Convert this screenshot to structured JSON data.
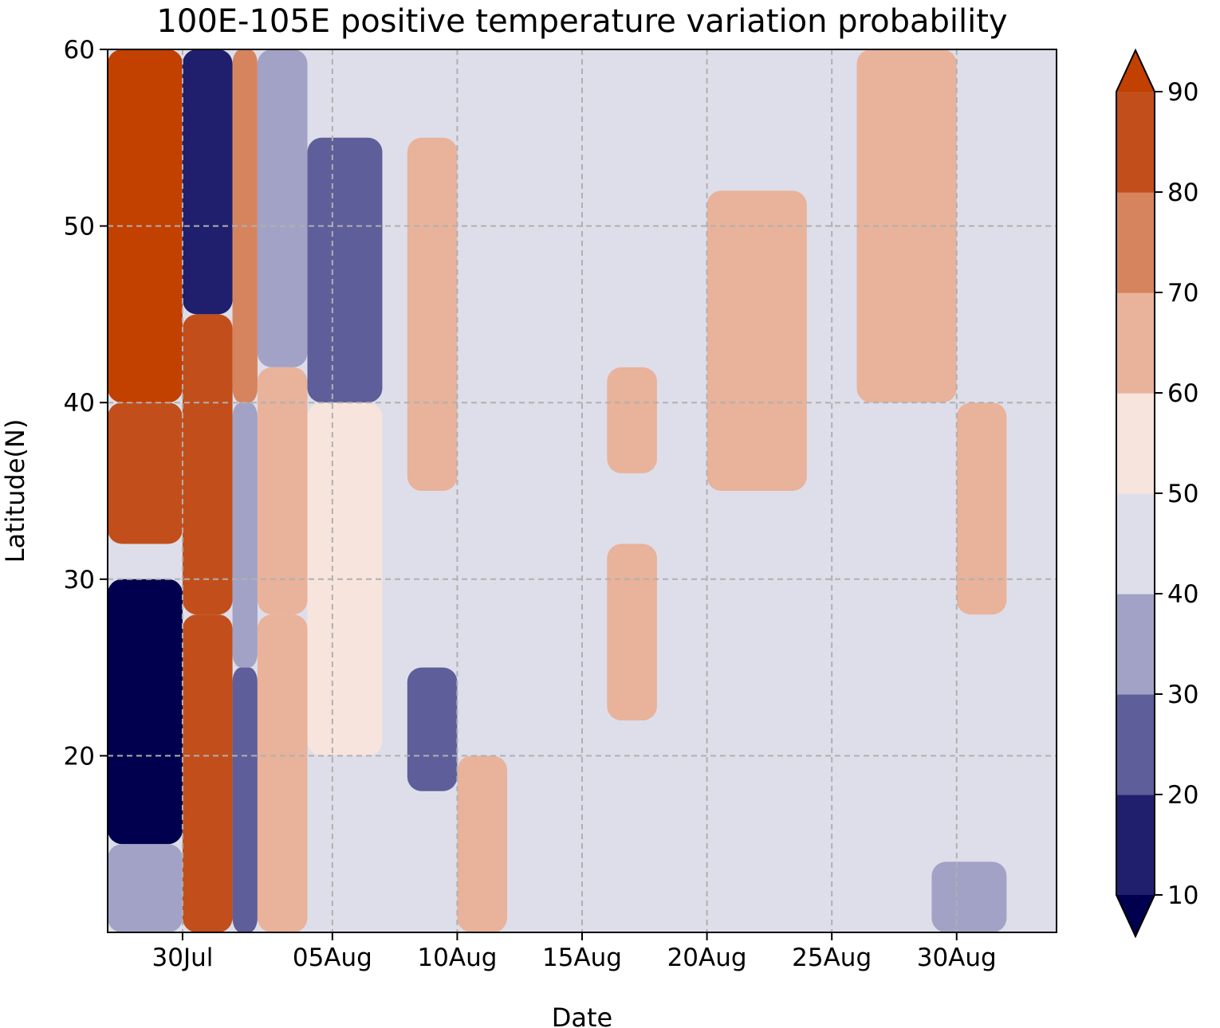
{
  "chart_data": {
    "type": "heatmap",
    "subtype": "filled-contour",
    "title": "100E-105E positive temperature variation probability",
    "xlabel": "Date",
    "ylabel": "Latitude(N)",
    "x_range_days_from_30Jul": [
      -3,
      35
    ],
    "ylim": [
      10,
      60
    ],
    "x_ticks": [
      {
        "label": "30Jul",
        "day": 0
      },
      {
        "label": "05Aug",
        "day": 6
      },
      {
        "label": "10Aug",
        "day": 11
      },
      {
        "label": "15Aug",
        "day": 16
      },
      {
        "label": "20Aug",
        "day": 21
      },
      {
        "label": "25Aug",
        "day": 26
      },
      {
        "label": "30Aug",
        "day": 31
      }
    ],
    "y_ticks": [
      20,
      30,
      40,
      50,
      60
    ],
    "grid": true,
    "colorbar": {
      "location": "right",
      "extend": "both",
      "levels": [
        10,
        20,
        30,
        40,
        50,
        60,
        70,
        80,
        90
      ],
      "tick_labels": [
        "10",
        "20",
        "30",
        "40",
        "50",
        "60",
        "70",
        "80",
        "90"
      ],
      "colors": [
        "#00004e",
        "#1f1f6e",
        "#5e5e9a",
        "#a2a2c6",
        "#dedeea",
        "#f7e4dc",
        "#e8b39a",
        "#d6845e",
        "#c24f1b",
        "#c24000"
      ]
    },
    "cells": [
      {
        "x0": -3,
        "x1": 0,
        "y0": 40,
        "y1": 60,
        "v": 92
      },
      {
        "x0": -3,
        "x1": 0,
        "y0": 32,
        "y1": 40,
        "v": 80
      },
      {
        "x0": -3,
        "x1": 0,
        "y0": 30,
        "y1": 32,
        "v": 45
      },
      {
        "x0": -3,
        "x1": 0,
        "y0": 15,
        "y1": 30,
        "v": 8
      },
      {
        "x0": -3,
        "x1": 0,
        "y0": 10,
        "y1": 15,
        "v": 35
      },
      {
        "x0": 0,
        "x1": 2,
        "y0": 45,
        "y1": 60,
        "v": 12
      },
      {
        "x0": 0,
        "x1": 2,
        "y0": 28,
        "y1": 45,
        "v": 88
      },
      {
        "x0": 0,
        "x1": 2,
        "y0": 10,
        "y1": 28,
        "v": 85
      },
      {
        "x0": 2,
        "x1": 3,
        "y0": 40,
        "y1": 60,
        "v": 75
      },
      {
        "x0": 2,
        "x1": 3,
        "y0": 25,
        "y1": 40,
        "v": 35
      },
      {
        "x0": 2,
        "x1": 3,
        "y0": 10,
        "y1": 25,
        "v": 25
      },
      {
        "x0": 3,
        "x1": 5,
        "y0": 42,
        "y1": 60,
        "v": 30
      },
      {
        "x0": 3,
        "x1": 5,
        "y0": 28,
        "y1": 42,
        "v": 68
      },
      {
        "x0": 3,
        "x1": 5,
        "y0": 10,
        "y1": 28,
        "v": 62
      },
      {
        "x0": 5,
        "x1": 8,
        "y0": 40,
        "y1": 55,
        "v": 25
      },
      {
        "x0": 5,
        "x1": 8,
        "y0": 20,
        "y1": 40,
        "v": 52
      },
      {
        "x0": 5,
        "x1": 8,
        "y0": 10,
        "y1": 20,
        "v": 45
      },
      {
        "x0": 9,
        "x1": 11,
        "y0": 35,
        "y1": 55,
        "v": 66
      },
      {
        "x0": 9,
        "x1": 11,
        "y0": 18,
        "y1": 25,
        "v": 25
      },
      {
        "x0": 11,
        "x1": 13,
        "y0": 10,
        "y1": 20,
        "v": 65
      },
      {
        "x0": 17,
        "x1": 19,
        "y0": 36,
        "y1": 42,
        "v": 66
      },
      {
        "x0": 17,
        "x1": 19,
        "y0": 22,
        "y1": 32,
        "v": 62
      },
      {
        "x0": 21,
        "x1": 25,
        "y0": 35,
        "y1": 52,
        "v": 64
      },
      {
        "x0": 27,
        "x1": 31,
        "y0": 40,
        "y1": 60,
        "v": 62
      },
      {
        "x0": 31,
        "x1": 33,
        "y0": 28,
        "y1": 40,
        "v": 66
      },
      {
        "x0": 30,
        "x1": 33,
        "y0": 10,
        "y1": 14,
        "v": 32
      }
    ],
    "background_value": 45
  }
}
